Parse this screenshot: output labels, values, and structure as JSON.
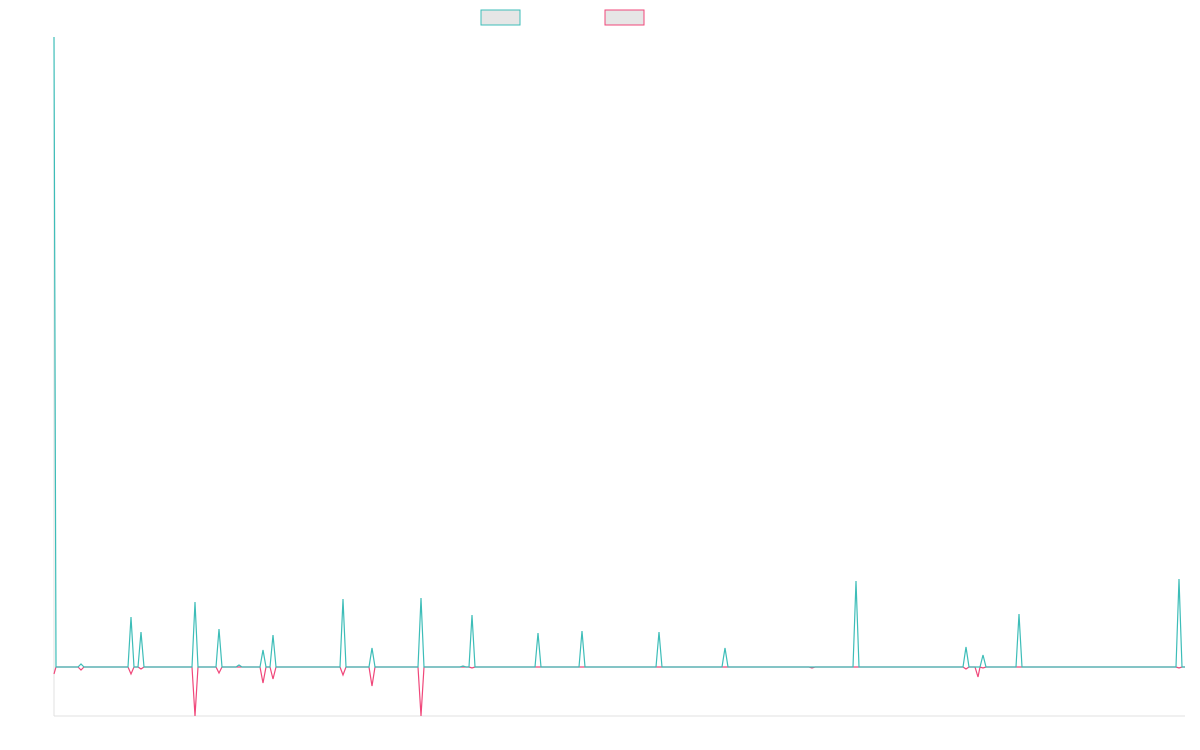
{
  "chart_data": {
    "type": "line",
    "x": [
      0,
      2,
      24,
      27,
      30,
      74,
      77,
      80,
      84,
      87,
      90,
      138,
      141,
      144,
      162,
      165,
      168,
      182,
      185,
      188,
      206,
      209,
      212,
      216,
      219,
      222,
      286,
      289,
      292,
      315,
      318,
      321,
      364,
      367,
      370,
      406,
      409,
      412,
      415,
      418,
      421,
      481,
      484,
      487,
      525,
      528,
      531,
      602,
      605,
      608,
      668,
      671,
      674,
      755,
      758,
      761,
      799,
      802,
      805,
      909,
      912,
      915,
      921,
      924,
      926,
      929,
      932,
      962,
      965,
      968,
      1122,
      1125,
      1128,
      1131
    ],
    "series": [
      {
        "color": "#3dbdb8",
        "values": [
          630,
          0,
          0,
          3,
          0,
          0,
          50,
          0,
          0,
          35,
          0,
          0,
          65,
          0,
          0,
          38,
          0,
          0,
          2,
          0,
          0,
          17,
          0,
          0,
          32,
          0,
          0,
          68,
          0,
          0,
          19,
          0,
          0,
          69,
          0,
          0,
          1,
          0,
          0,
          52,
          0,
          0,
          34,
          0,
          0,
          36,
          0,
          0,
          35,
          0,
          0,
          19,
          0,
          0,
          0,
          0,
          0,
          86,
          0,
          0,
          20,
          0,
          0,
          0,
          0,
          12,
          0,
          0,
          53,
          0,
          0,
          88,
          0,
          0
        ]
      },
      {
        "color": "#f0477a",
        "values": [
          -7,
          0,
          0,
          -3,
          0,
          0,
          -7,
          0,
          0,
          -2,
          0,
          0,
          -49,
          0,
          0,
          -6,
          0,
          0,
          0,
          0,
          0,
          -16,
          0,
          0,
          -12,
          0,
          0,
          -8,
          0,
          0,
          -19,
          0,
          0,
          -49,
          0,
          0,
          0,
          0,
          0,
          -1,
          0,
          0,
          0,
          0,
          0,
          0,
          0,
          0,
          0,
          0,
          0,
          0,
          0,
          0,
          -1,
          0,
          0,
          0,
          0,
          0,
          -2,
          0,
          0,
          -10,
          0,
          -1,
          0,
          0,
          0,
          0,
          0,
          -1,
          0,
          0
        ]
      }
    ],
    "xlim": [
      0,
      1131
    ],
    "ylim": [
      -49,
      630
    ],
    "legend": "top"
  }
}
